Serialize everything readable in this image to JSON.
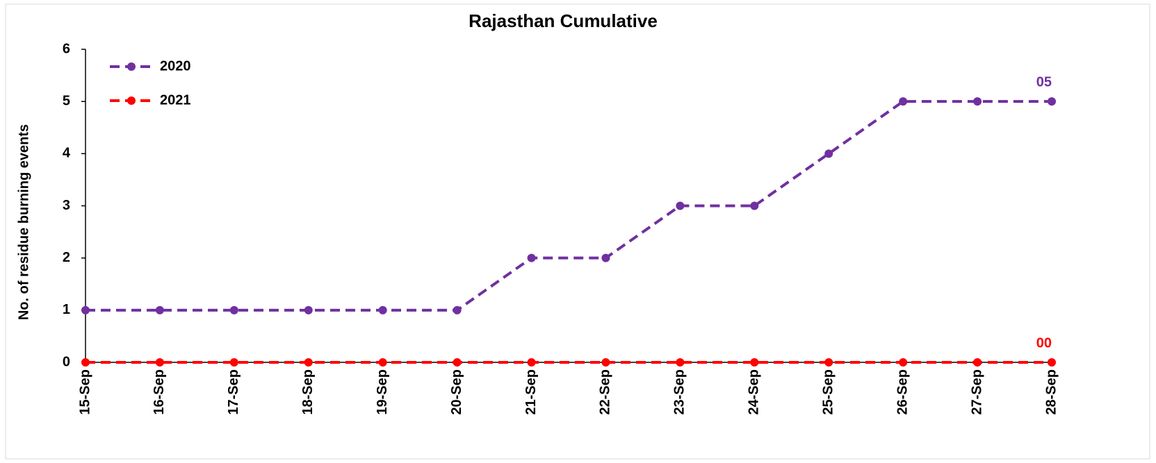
{
  "chart_data": {
    "type": "line",
    "title": "Rajasthan Cumulative",
    "y_label": "No. of residue burning events",
    "categories": [
      "15-Sep",
      "16-Sep",
      "17-Sep",
      "18-Sep",
      "19-Sep",
      "20-Sep",
      "21-Sep",
      "22-Sep",
      "23-Sep",
      "24-Sep",
      "25-Sep",
      "26-Sep",
      "27-Sep",
      "28-Sep"
    ],
    "series": [
      {
        "name": "2020",
        "color": "#7030a0",
        "values": [
          1,
          1,
          1,
          1,
          1,
          1,
          2,
          2,
          3,
          3,
          4,
          5,
          5,
          5
        ],
        "value_labels": [
          null,
          null,
          null,
          null,
          null,
          null,
          null,
          null,
          null,
          null,
          null,
          null,
          null,
          "05"
        ]
      },
      {
        "name": "2021",
        "color": "#ff0000",
        "values": [
          0,
          0,
          0,
          0,
          0,
          0,
          0,
          0,
          0,
          0,
          0,
          0,
          0,
          0
        ],
        "value_labels": [
          null,
          null,
          null,
          null,
          null,
          null,
          null,
          null,
          null,
          null,
          null,
          null,
          null,
          "00"
        ]
      }
    ],
    "ylim": [
      0,
      6
    ],
    "yticks": [
      0,
      1,
      2,
      3,
      4,
      5,
      6
    ],
    "grid": false,
    "legend": "top-left"
  }
}
